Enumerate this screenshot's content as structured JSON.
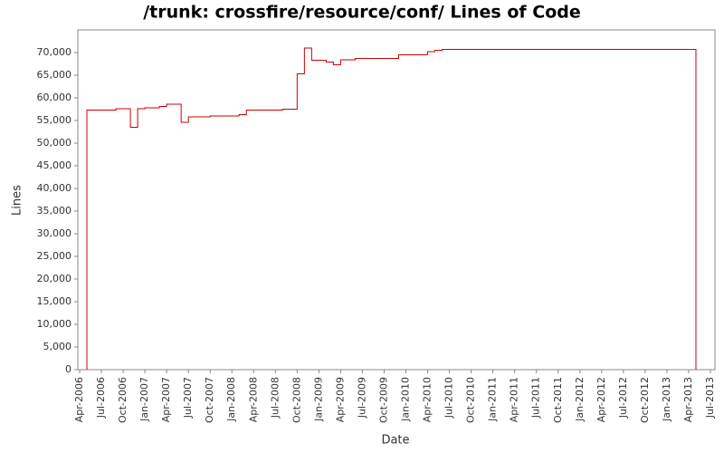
{
  "chart_data": {
    "type": "step",
    "title": "/trunk: crossfire/resource/conf/ Lines of Code",
    "x_label": "Date",
    "y_label": "Lines",
    "x": [
      "2006-05",
      "2006-09",
      "2006-11",
      "2006-12",
      "2007-01",
      "2007-03",
      "2007-04",
      "2007-06",
      "2007-07",
      "2007-10",
      "2008-02",
      "2008-03",
      "2008-08",
      "2008-10",
      "2008-11",
      "2008-12",
      "2009-02",
      "2009-03",
      "2009-04",
      "2009-06",
      "2009-12",
      "2010-04",
      "2010-05",
      "2010-06",
      "2013-05"
    ],
    "series": [
      {
        "name": "Lines",
        "color": "#cc0000",
        "values": [
          57300,
          57600,
          53500,
          57600,
          57800,
          58100,
          58600,
          54600,
          55800,
          56000,
          56300,
          57300,
          57500,
          65300,
          71000,
          68300,
          67900,
          67300,
          68400,
          68700,
          69500,
          70200,
          70500,
          70700,
          0
        ]
      }
    ],
    "xlim": [
      "2006-04",
      "2013-07"
    ],
    "xticks": [
      {
        "value": "2006-04",
        "label": "Apr-2006"
      },
      {
        "value": "2006-07",
        "label": "Jul-2006"
      },
      {
        "value": "2006-10",
        "label": "Oct-2006"
      },
      {
        "value": "2007-01",
        "label": "Jan-2007"
      },
      {
        "value": "2007-04",
        "label": "Apr-2007"
      },
      {
        "value": "2007-07",
        "label": "Jul-2007"
      },
      {
        "value": "2007-10",
        "label": "Oct-2007"
      },
      {
        "value": "2008-01",
        "label": "Jan-2008"
      },
      {
        "value": "2008-04",
        "label": "Apr-2008"
      },
      {
        "value": "2008-07",
        "label": "Jul-2008"
      },
      {
        "value": "2008-10",
        "label": "Oct-2008"
      },
      {
        "value": "2009-01",
        "label": "Jan-2009"
      },
      {
        "value": "2009-04",
        "label": "Apr-2009"
      },
      {
        "value": "2009-07",
        "label": "Jul-2009"
      },
      {
        "value": "2009-10",
        "label": "Oct-2009"
      },
      {
        "value": "2010-01",
        "label": "Jan-2010"
      },
      {
        "value": "2010-04",
        "label": "Apr-2010"
      },
      {
        "value": "2010-07",
        "label": "Jul-2010"
      },
      {
        "value": "2010-10",
        "label": "Oct-2010"
      },
      {
        "value": "2011-01",
        "label": "Jan-2011"
      },
      {
        "value": "2011-04",
        "label": "Apr-2011"
      },
      {
        "value": "2011-07",
        "label": "Jul-2011"
      },
      {
        "value": "2011-10",
        "label": "Oct-2011"
      },
      {
        "value": "2012-01",
        "label": "Jan-2012"
      },
      {
        "value": "2012-04",
        "label": "Apr-2012"
      },
      {
        "value": "2012-07",
        "label": "Jul-2012"
      },
      {
        "value": "2012-10",
        "label": "Oct-2012"
      },
      {
        "value": "2013-01",
        "label": "Jan-2013"
      },
      {
        "value": "2013-04",
        "label": "Apr-2013"
      },
      {
        "value": "2013-07",
        "label": "Jul-2013"
      }
    ],
    "ylim": [
      0,
      75000
    ],
    "yticks": [
      0,
      {
        "value": 5000,
        "label": "5,000"
      },
      {
        "value": 10000,
        "label": "10,000"
      },
      {
        "value": 15000,
        "label": "15,000"
      },
      {
        "value": 20000,
        "label": "20,000"
      },
      {
        "value": 25000,
        "label": "25,000"
      },
      {
        "value": 30000,
        "label": "30,000"
      },
      {
        "value": 35000,
        "label": "35,000"
      },
      {
        "value": 40000,
        "label": "40,000"
      },
      {
        "value": 45000,
        "label": "45,000"
      },
      {
        "value": 50000,
        "label": "50,000"
      },
      {
        "value": 55000,
        "label": "55,000"
      },
      {
        "value": 60000,
        "label": "60,000"
      },
      {
        "value": 65000,
        "label": "65,000"
      },
      {
        "value": 70000,
        "label": "70,000"
      }
    ],
    "grid": false
  }
}
